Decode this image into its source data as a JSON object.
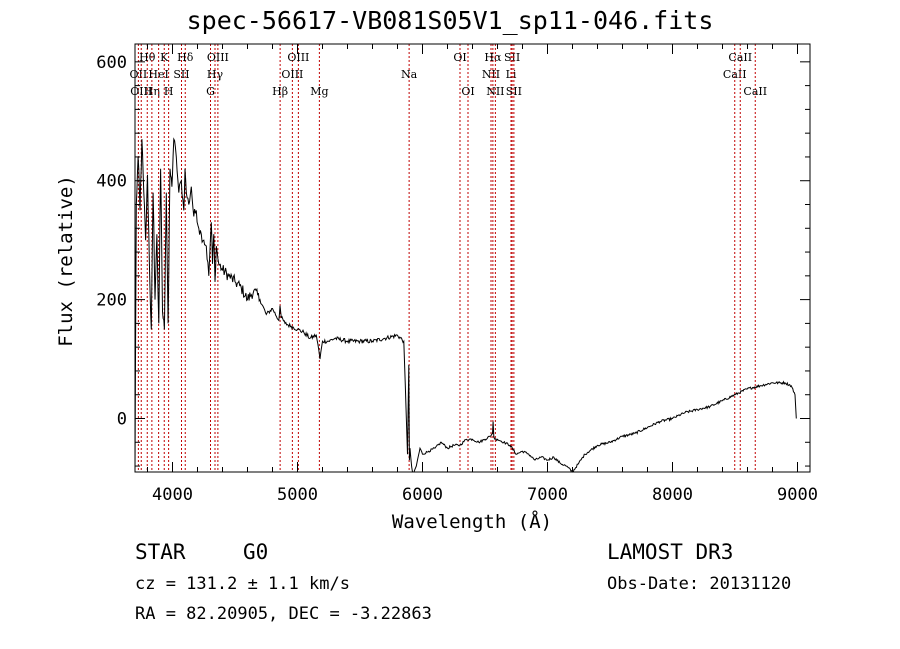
{
  "chart_data": {
    "type": "line",
    "title": "spec-56617-VB081S05V1_sp11-046.fits",
    "xlabel": "Wavelength (Å)",
    "ylabel": "Flux (relative)",
    "xlim": [
      3700,
      9100
    ],
    "ylim": [
      -90,
      630
    ],
    "xticks": [
      4000,
      5000,
      6000,
      7000,
      8000,
      9000
    ],
    "yticks": [
      0,
      200,
      400,
      600
    ],
    "x_tick_labels": [
      "4000",
      "5000",
      "6000",
      "7000",
      "8000",
      "9000"
    ],
    "y_tick_labels": [
      "0",
      "200",
      "400",
      "600"
    ],
    "series": [
      {
        "name": "flux",
        "x": [
          3700,
          3710,
          3725,
          3740,
          3755,
          3770,
          3785,
          3800,
          3815,
          3830,
          3845,
          3860,
          3875,
          3890,
          3905,
          3920,
          3935,
          3950,
          3965,
          3980,
          3995,
          4010,
          4030,
          4050,
          4070,
          4090,
          4100,
          4110,
          4130,
          4150,
          4170,
          4190,
          4210,
          4230,
          4250,
          4270,
          4290,
          4310,
          4320,
          4330,
          4340,
          4350,
          4370,
          4400,
          4450,
          4500,
          4550,
          4600,
          4650,
          4700,
          4750,
          4800,
          4850,
          4860,
          4870,
          4900,
          4950,
          5000,
          5050,
          5100,
          5150,
          5170,
          5180,
          5200,
          5250,
          5300,
          5400,
          5500,
          5600,
          5700,
          5800,
          5850,
          5880,
          5890,
          5895,
          5900,
          5920,
          5950,
          5980,
          6000,
          6050,
          6100,
          6150,
          6200,
          6250,
          6300,
          6350,
          6400,
          6450,
          6500,
          6540,
          6560,
          6565,
          6570,
          6580,
          6600,
          6650,
          6700,
          6750,
          6800,
          6850,
          6900,
          6950,
          7000,
          7050,
          7100,
          7150,
          7200,
          7250,
          7300,
          7400,
          7500,
          7600,
          7700,
          7800,
          7900,
          8000,
          8100,
          8200,
          8300,
          8400,
          8500,
          8600,
          8700,
          8800,
          8900,
          8950,
          8980,
          8990
        ],
        "y": [
          -90,
          360,
          440,
          350,
          470,
          380,
          300,
          410,
          260,
          150,
          380,
          200,
          310,
          160,
          420,
          180,
          150,
          380,
          160,
          420,
          390,
          470,
          440,
          380,
          400,
          350,
          420,
          380,
          360,
          390,
          340,
          350,
          320,
          310,
          300,
          290,
          240,
          330,
          260,
          310,
          230,
          290,
          260,
          250,
          240,
          230,
          220,
          200,
          215,
          200,
          175,
          185,
          165,
          190,
          170,
          160,
          155,
          150,
          145,
          135,
          140,
          115,
          100,
          130,
          130,
          135,
          130,
          130,
          130,
          135,
          140,
          130,
          -60,
          90,
          -70,
          -50,
          -100,
          -80,
          -50,
          -60,
          -55,
          -50,
          -40,
          -50,
          -45,
          -45,
          -35,
          -35,
          -40,
          -35,
          -30,
          -25,
          -5,
          -30,
          -35,
          -35,
          -40,
          -45,
          -60,
          -55,
          -60,
          -70,
          -65,
          -70,
          -65,
          -75,
          -80,
          -90,
          -75,
          -60,
          -45,
          -40,
          -30,
          -25,
          -15,
          -5,
          0,
          10,
          15,
          20,
          30,
          40,
          50,
          55,
          60,
          60,
          55,
          40,
          0
        ]
      }
    ],
    "line_markers": [
      {
        "wavelength": 3727,
        "label": "OII",
        "row": 1
      },
      {
        "wavelength": 3750,
        "label": "OIII",
        "row": 2
      },
      {
        "wavelength": 3798,
        "label": "Hθ",
        "row": 0
      },
      {
        "wavelength": 3835,
        "label": "Hη",
        "row": 2
      },
      {
        "wavelength": 3889,
        "label": "HeI",
        "row": 1
      },
      {
        "wavelength": 3934,
        "label": "K",
        "row": 0
      },
      {
        "wavelength": 3969,
        "label": "H",
        "row": 2
      },
      {
        "wavelength": 4072,
        "label": "SII",
        "row": 1
      },
      {
        "wavelength": 4102,
        "label": "Hδ",
        "row": 0
      },
      {
        "wavelength": 4304,
        "label": "G",
        "row": 2
      },
      {
        "wavelength": 4340,
        "label": "Hγ",
        "row": 1
      },
      {
        "wavelength": 4363,
        "label": "OIII",
        "row": 0
      },
      {
        "wavelength": 4861,
        "label": "Hβ",
        "row": 2
      },
      {
        "wavelength": 4959,
        "label": "OIII",
        "row": 1
      },
      {
        "wavelength": 5007,
        "label": "OIII",
        "row": 0
      },
      {
        "wavelength": 5175,
        "label": "Mg",
        "row": 2
      },
      {
        "wavelength": 5893,
        "label": "Na",
        "row": 1
      },
      {
        "wavelength": 6300,
        "label": "OI",
        "row": 0
      },
      {
        "wavelength": 6364,
        "label": "OI",
        "row": 2
      },
      {
        "wavelength": 6548,
        "label": "NII",
        "row": 1
      },
      {
        "wavelength": 6563,
        "label": "Hα",
        "row": 0
      },
      {
        "wavelength": 6583,
        "label": "NII",
        "row": 2
      },
      {
        "wavelength": 6708,
        "label": "Li",
        "row": 1
      },
      {
        "wavelength": 6717,
        "label": "SII",
        "row": 0
      },
      {
        "wavelength": 6731,
        "label": "SII",
        "row": 2
      },
      {
        "wavelength": 8498,
        "label": "CaII",
        "row": 1
      },
      {
        "wavelength": 8542,
        "label": "CaII",
        "row": 0
      },
      {
        "wavelength": 8662,
        "label": "CaII",
        "row": 2
      }
    ]
  },
  "info": {
    "class": "STAR",
    "subclass": "G0",
    "survey": "LAMOST DR3",
    "cz": "cz = 131.2 ± 1.1 km/s",
    "obs_date": "Obs-Date: 20131120",
    "coords": "RA =  82.20905, DEC =  -3.22863"
  },
  "colors": {
    "spectrum": "#000000",
    "line_marker": "#c00000",
    "axes": "#000000"
  }
}
